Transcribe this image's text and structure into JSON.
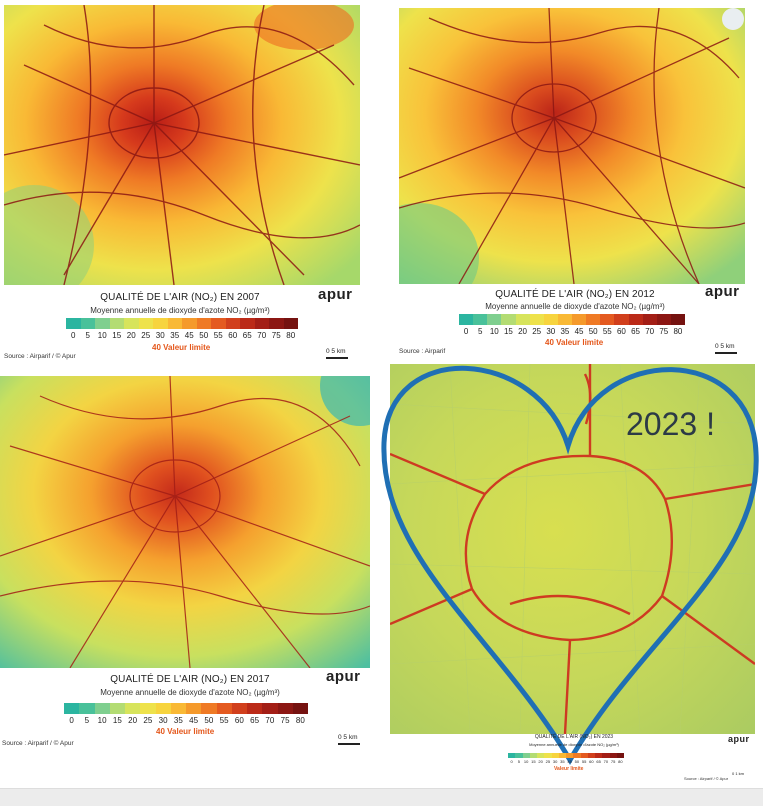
{
  "panels": [
    {
      "title": "QUALITÉ DE L'AIR (NO₂) EN 2007",
      "subtitle": "Moyenne annuelle de dioxyde d'azote NO₂ (µg/m³)",
      "ticks": [
        "0",
        "5",
        "10",
        "15",
        "20",
        "25",
        "30",
        "35",
        "45",
        "50",
        "55",
        "60",
        "65",
        "70",
        "75",
        "80"
      ],
      "limit_label": "40 Valeur limite",
      "brand": "apur",
      "source": "Source : Airparif / © Apur",
      "scale_label": "0       5 km"
    },
    {
      "title": "QUALITÉ DE L'AIR (NO₂) EN 2012",
      "subtitle": "Moyenne annuelle de dioxyde d'azote NO₂ (µg/m³)",
      "ticks": [
        "0",
        "5",
        "10",
        "15",
        "20",
        "25",
        "30",
        "35",
        "45",
        "50",
        "55",
        "60",
        "65",
        "70",
        "75",
        "80"
      ],
      "limit_label": "40 Valeur limite",
      "brand": "apur",
      "source": "Source : Airparif",
      "scale_label": "0       5 km"
    },
    {
      "title": "QUALITÉ DE L'AIR (NO₂) EN 2017",
      "subtitle": "Moyenne annuelle de dioxyde d'azote NO₂ (µg/m³)",
      "ticks": [
        "0",
        "5",
        "10",
        "15",
        "20",
        "25",
        "30",
        "35",
        "45",
        "50",
        "55",
        "60",
        "65",
        "70",
        "75",
        "80"
      ],
      "limit_label": "40 Valeur limite",
      "brand": "apur",
      "source": "Source : Airparif / © Apur",
      "scale_label": "0       5 km"
    },
    {
      "title": "QUALITÉ DE L'AIR (NO₂) EN 2023",
      "subtitle": "Moyenne annuelle de dioxyde d'azote NO₂ (µg/m³)",
      "ticks": [
        "0",
        "5",
        "10",
        "15",
        "20",
        "25",
        "30",
        "35",
        "45",
        "50",
        "55",
        "60",
        "65",
        "70",
        "75",
        "80"
      ],
      "limit_label": "Valeur limite",
      "brand": "apur",
      "source": "Source : Airparif / © Apur",
      "scale_label": "0   1 km"
    }
  ],
  "annotation": "2023 !",
  "legend_colors": [
    "#2bb5a0",
    "#49c19a",
    "#7fcf8f",
    "#b3dc73",
    "#d7e45c",
    "#eee24b",
    "#f7d43e",
    "#f9b935",
    "#f59a2b",
    "#ef7a25",
    "#e45a20",
    "#d13f1c",
    "#bb2a18",
    "#a31e16",
    "#8c1713",
    "#751210"
  ],
  "annotation_color": "#1f6fb4"
}
